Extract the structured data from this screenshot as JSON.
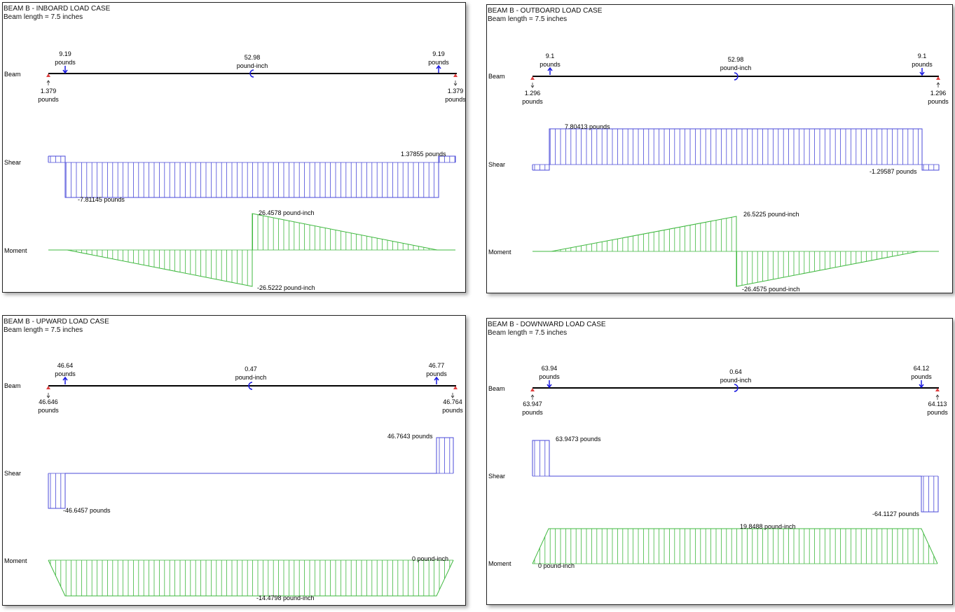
{
  "colors": {
    "shear": "#4a4ad8",
    "moment": "#3fb83f",
    "beam": "#000000",
    "arrow": "#1a1ae0",
    "support": "#e04040"
  },
  "row_labels": {
    "beam": "Beam",
    "shear": "Shear",
    "moment": "Moment"
  },
  "panels": [
    {
      "title": "BEAM B - INBOARD LOAD CASE",
      "length": "Beam length = 7.5 inches",
      "beam": {
        "left_load": {
          "value": "9.19",
          "unit": "pounds",
          "dir": "down"
        },
        "right_load": {
          "value": "9.19",
          "unit": "pounds",
          "dir": "up"
        },
        "moment_load": {
          "value": "52.98",
          "unit": "pound-inch",
          "icon": "counterclockwise-moment-icon"
        },
        "left_reaction": {
          "value": "1.379",
          "unit": "pounds",
          "dir": "up"
        },
        "right_reaction": {
          "value": "1.379",
          "unit": "pounds",
          "dir": "down"
        }
      },
      "shear_labels": {
        "max": "1.37855 pounds",
        "min": "-7.81145 pounds"
      },
      "moment_labels": {
        "max": "26.4578 pound-inch",
        "min": "-26.5222 pound-inch"
      }
    },
    {
      "title": "BEAM B - OUTBOARD LOAD CASE",
      "length": "Beam length = 7.5 inches",
      "beam": {
        "left_load": {
          "value": "9.1",
          "unit": "pounds",
          "dir": "up"
        },
        "right_load": {
          "value": "9.1",
          "unit": "pounds",
          "dir": "down"
        },
        "moment_load": {
          "value": "52.98",
          "unit": "pound-inch",
          "icon": "clockwise-moment-icon"
        },
        "left_reaction": {
          "value": "1.296",
          "unit": "pounds",
          "dir": "down"
        },
        "right_reaction": {
          "value": "1.296",
          "unit": "pounds",
          "dir": "up"
        }
      },
      "shear_labels": {
        "max": "7.80413 pounds",
        "min": "-1.29587 pounds"
      },
      "moment_labels": {
        "max": "26.5225 pound-inch",
        "min": "-26.4575 pound-inch"
      }
    },
    {
      "title": "BEAM B - UPWARD LOAD CASE",
      "length": "Beam length = 7.5 inches",
      "beam": {
        "left_load": {
          "value": "46.64",
          "unit": "pounds",
          "dir": "up"
        },
        "right_load": {
          "value": "46.77",
          "unit": "pounds",
          "dir": "up"
        },
        "moment_load": {
          "value": "0.47",
          "unit": "pound-inch",
          "icon": "counterclockwise-moment-icon"
        },
        "left_reaction": {
          "value": "46.646",
          "unit": "pounds",
          "dir": "down"
        },
        "right_reaction": {
          "value": "46.764",
          "unit": "pounds",
          "dir": "down"
        }
      },
      "shear_labels": {
        "max": "46.7643 pounds",
        "min": "-46.6457 pounds"
      },
      "moment_labels": {
        "max": "0 pound-inch",
        "min": "-14.4798 pound-inch"
      }
    },
    {
      "title": "BEAM B - DOWNWARD LOAD CASE",
      "length": "Beam length = 7.5 inches",
      "beam": {
        "left_load": {
          "value": "63.94",
          "unit": "pounds",
          "dir": "down"
        },
        "right_load": {
          "value": "64.12",
          "unit": "pounds",
          "dir": "down"
        },
        "moment_load": {
          "value": "0.64",
          "unit": "pound-inch",
          "icon": "clockwise-moment-icon"
        },
        "left_reaction": {
          "value": "63.947",
          "unit": "pounds",
          "dir": "up"
        },
        "right_reaction": {
          "value": "64.113",
          "unit": "pounds",
          "dir": "up"
        }
      },
      "shear_labels": {
        "max": "63.9473 pounds",
        "min": "-64.1127 pounds"
      },
      "moment_labels": {
        "max": "19.8488 pound-inch",
        "min": "0 pound-inch"
      }
    }
  ]
}
